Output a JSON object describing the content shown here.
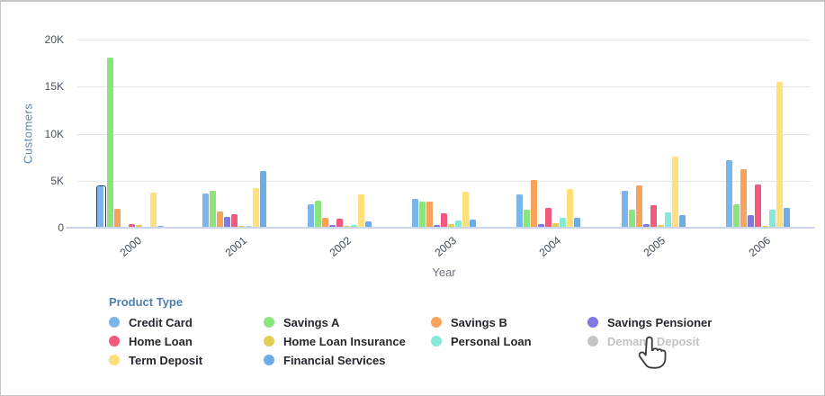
{
  "chart_data": {
    "type": "bar",
    "title": "",
    "xlabel": "Year",
    "ylabel": "Customers",
    "ylim": [
      0,
      20000
    ],
    "grid": true,
    "legend_position": "bottom",
    "yticks": [
      {
        "label": "20K",
        "value": 20000
      },
      {
        "label": "15K",
        "value": 15000
      },
      {
        "label": "10K",
        "value": 10000
      },
      {
        "label": "5K",
        "value": 5000
      },
      {
        "label": "0",
        "value": 0
      }
    ],
    "categories": [
      "2000",
      "2001",
      "2002",
      "2003",
      "2004",
      "2005",
      "2006"
    ],
    "series": [
      {
        "name": "Credit Card",
        "color": "#7cb5ec",
        "disabled": false,
        "values": [
          4400,
          3600,
          2500,
          3100,
          3500,
          3900,
          7150
        ]
      },
      {
        "name": "Savings A",
        "color": "#8be47e",
        "disabled": false,
        "values": [
          18100,
          3950,
          2900,
          2750,
          1950,
          1900,
          2450
        ]
      },
      {
        "name": "Savings B",
        "color": "#f7a35c",
        "disabled": false,
        "values": [
          2000,
          1700,
          1100,
          2750,
          5100,
          4500,
          6200
        ]
      },
      {
        "name": "Savings Pensioner",
        "color": "#8278e4",
        "disabled": false,
        "values": [
          60,
          1150,
          250,
          300,
          350,
          400,
          1300
        ]
      },
      {
        "name": "Home Loan",
        "color": "#f1597e",
        "disabled": false,
        "values": [
          400,
          1450,
          950,
          1550,
          2100,
          2400,
          4550
        ]
      },
      {
        "name": "Home Loan Insurance",
        "color": "#e3cd55",
        "disabled": false,
        "values": [
          250,
          150,
          200,
          400,
          500,
          300,
          200
        ]
      },
      {
        "name": "Personal Loan",
        "color": "#86e8d7",
        "disabled": false,
        "values": [
          60,
          200,
          250,
          750,
          1100,
          1650,
          1900
        ]
      },
      {
        "name": "Demand Deposit",
        "color": "#c5c5c5",
        "disabled": true,
        "values": []
      },
      {
        "name": "Term Deposit",
        "color": "#ffe07a",
        "disabled": false,
        "values": [
          3700,
          4200,
          3500,
          3850,
          4150,
          7550,
          15500
        ]
      },
      {
        "name": "Financial Services",
        "color": "#6dace4",
        "disabled": false,
        "values": [
          150,
          6000,
          650,
          900,
          1100,
          1300,
          2150
        ]
      }
    ],
    "selected_point": {
      "series": "Credit Card",
      "category": "2000"
    }
  },
  "legend": {
    "title": "Product Type"
  },
  "cursor": {
    "icon": "hand-pointer",
    "over": "Demand Deposit"
  }
}
